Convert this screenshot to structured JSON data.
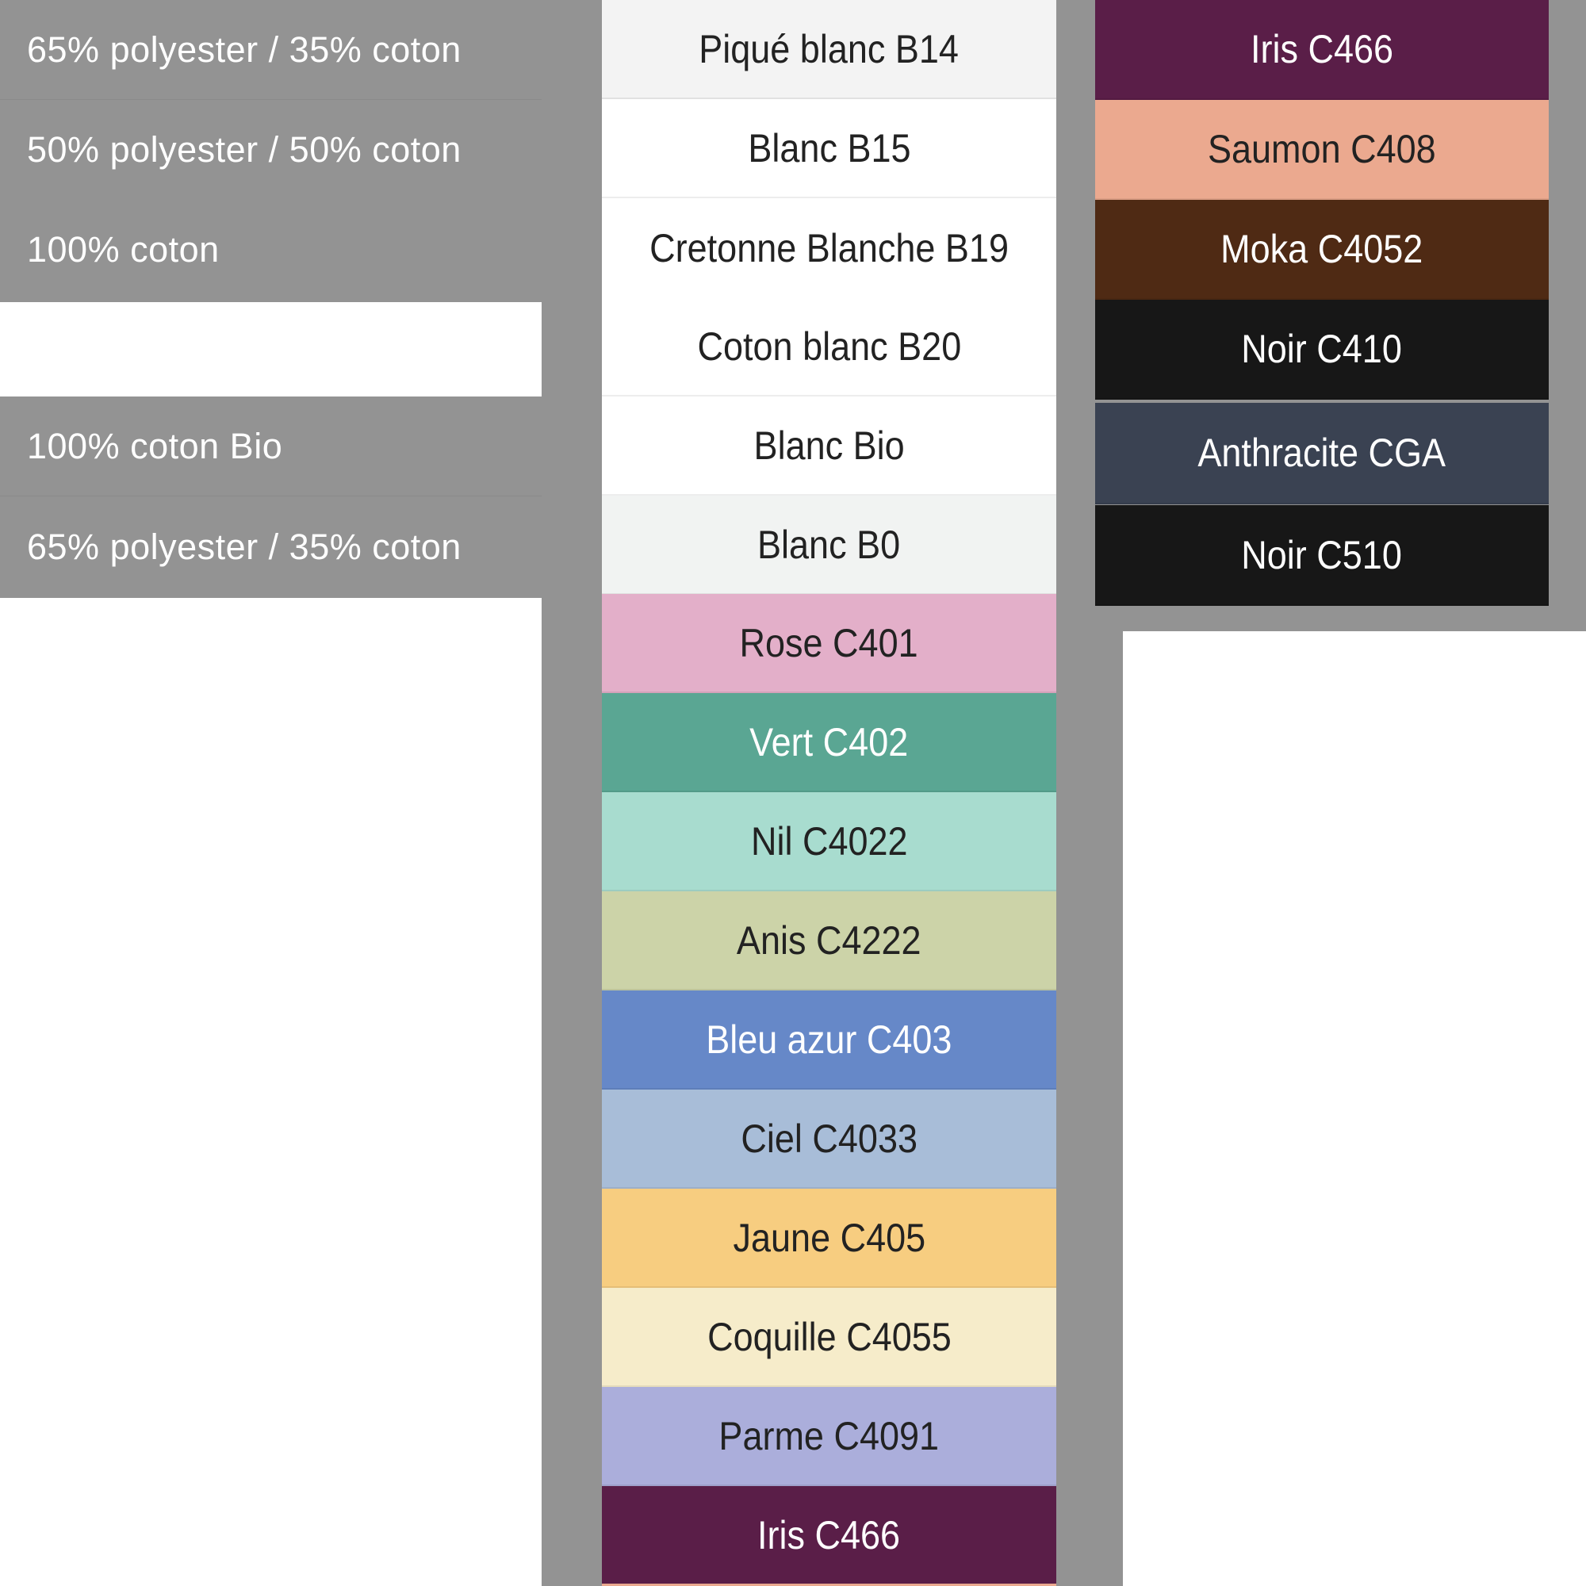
{
  "compositions": [
    {
      "label": "65% polyester / 35% coton"
    },
    {
      "label": "50% polyester / 50% coton"
    },
    {
      "label": "100% coton"
    },
    {
      "label": "100% coton Bio"
    },
    {
      "label": "65% polyester / 35% coton"
    }
  ],
  "colors_column_1": [
    {
      "label": "Piqué blanc B14",
      "color": "#f3f3f3",
      "text_color": "#222222"
    },
    {
      "label": "Blanc B15",
      "color": "#ffffff",
      "text_color": "#222222"
    },
    {
      "label": "Cretonne Blanche B19",
      "color": "#ffffff",
      "text_color": "#222222"
    },
    {
      "label": "Coton blanc B20",
      "color": "#ffffff",
      "text_color": "#222222"
    },
    {
      "label": "Blanc Bio",
      "color": "#ffffff",
      "text_color": "#222222"
    },
    {
      "label": "Blanc B0",
      "color": "#f1f3f2",
      "text_color": "#222222"
    },
    {
      "label": "Rose C401",
      "color": "#e3afc9",
      "text_color": "#222222"
    },
    {
      "label": "Vert C402",
      "color": "#5aa693",
      "text_color": "#ffffff"
    },
    {
      "label": "Nil C4022",
      "color": "#a8dccf",
      "text_color": "#222222"
    },
    {
      "label": "Anis C4222",
      "color": "#ccd3a8",
      "text_color": "#222222"
    },
    {
      "label": "Bleu azur C403",
      "color": "#6688c8",
      "text_color": "#ffffff"
    },
    {
      "label": "Ciel C4033",
      "color": "#a8bdd8",
      "text_color": "#222222"
    },
    {
      "label": "Jaune C405",
      "color": "#f7cd80",
      "text_color": "#222222"
    },
    {
      "label": "Coquille C4055",
      "color": "#f6ecca",
      "text_color": "#222222"
    },
    {
      "label": "Parme C4091",
      "color": "#abaedb",
      "text_color": "#222222"
    },
    {
      "label": "Iris C466",
      "color": "#5a1e48",
      "text_color": "#ffffff"
    }
  ],
  "colors_column_2": [
    {
      "label": "Iris C466",
      "color": "#5a1e48",
      "text_color": "#ffffff"
    },
    {
      "label": "Saumon C408",
      "color": "#eba98f",
      "text_color": "#222222"
    },
    {
      "label": "Moka C4052",
      "color": "#4f2a14",
      "text_color": "#ffffff"
    },
    {
      "label": "Noir C410",
      "color": "#171717",
      "text_color": "#ffffff"
    },
    {
      "label": "Anthracite CGA",
      "color": "#3a4252",
      "text_color": "#ffffff"
    },
    {
      "label": "Noir C510",
      "color": "#171717",
      "text_color": "#ffffff"
    }
  ],
  "background_color": "#939393"
}
